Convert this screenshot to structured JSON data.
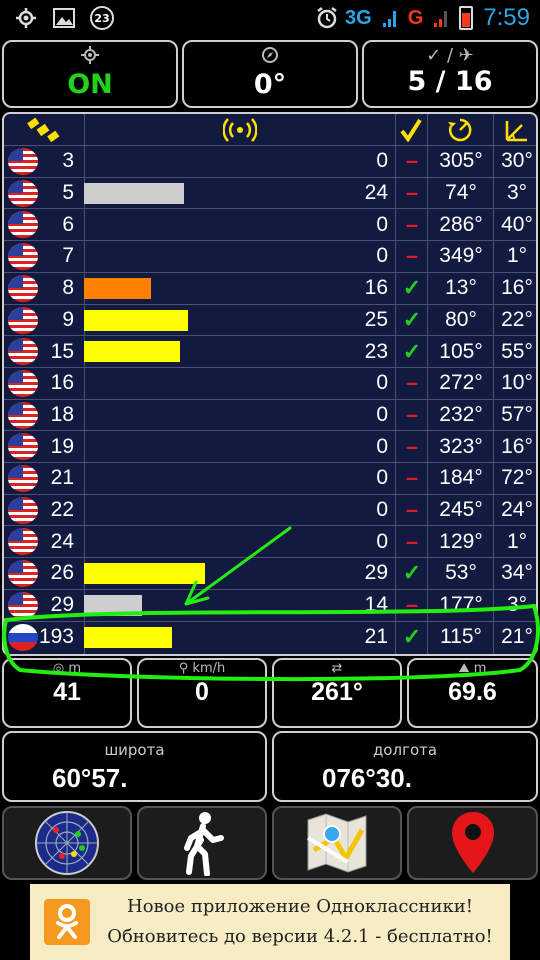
{
  "status_bar": {
    "notification_count": "23",
    "network_3g": "3G",
    "network_g": "G",
    "time": "7:59"
  },
  "top_panels": {
    "gps_state": "ON",
    "bearing": "0°",
    "satellites": "5 / 16",
    "satellites_icon_label": "✓ / ✈"
  },
  "satellites": [
    {
      "id": "3",
      "flag": "us",
      "snr": "0",
      "snr_level": 0,
      "snr_color": "",
      "used": false,
      "azimuth": "305°",
      "elevation": "30°"
    },
    {
      "id": "5",
      "flag": "us",
      "snr": "24",
      "snr_level": 24,
      "snr_color": "#cfcfcf",
      "used": false,
      "azimuth": "74°",
      "elevation": "3°"
    },
    {
      "id": "6",
      "flag": "us",
      "snr": "0",
      "snr_level": 0,
      "snr_color": "",
      "used": false,
      "azimuth": "286°",
      "elevation": "40°"
    },
    {
      "id": "7",
      "flag": "us",
      "snr": "0",
      "snr_level": 0,
      "snr_color": "",
      "used": false,
      "azimuth": "349°",
      "elevation": "1°"
    },
    {
      "id": "8",
      "flag": "us",
      "snr": "16",
      "snr_level": 16,
      "snr_color": "#ff8000",
      "used": true,
      "azimuth": "13°",
      "elevation": "16°"
    },
    {
      "id": "9",
      "flag": "us",
      "snr": "25",
      "snr_level": 25,
      "snr_color": "#ffff00",
      "used": true,
      "azimuth": "80°",
      "elevation": "22°"
    },
    {
      "id": "15",
      "flag": "us",
      "snr": "23",
      "snr_level": 23,
      "snr_color": "#ffff00",
      "used": true,
      "azimuth": "105°",
      "elevation": "55°"
    },
    {
      "id": "16",
      "flag": "us",
      "snr": "0",
      "snr_level": 0,
      "snr_color": "",
      "used": false,
      "azimuth": "272°",
      "elevation": "10°"
    },
    {
      "id": "18",
      "flag": "us",
      "snr": "0",
      "snr_level": 0,
      "snr_color": "",
      "used": false,
      "azimuth": "232°",
      "elevation": "57°"
    },
    {
      "id": "19",
      "flag": "us",
      "snr": "0",
      "snr_level": 0,
      "snr_color": "",
      "used": false,
      "azimuth": "323°",
      "elevation": "16°"
    },
    {
      "id": "21",
      "flag": "us",
      "snr": "0",
      "snr_level": 0,
      "snr_color": "",
      "used": false,
      "azimuth": "184°",
      "elevation": "72°"
    },
    {
      "id": "22",
      "flag": "us",
      "snr": "0",
      "snr_level": 0,
      "snr_color": "",
      "used": false,
      "azimuth": "245°",
      "elevation": "24°"
    },
    {
      "id": "24",
      "flag": "us",
      "snr": "0",
      "snr_level": 0,
      "snr_color": "",
      "used": false,
      "azimuth": "129°",
      "elevation": "1°"
    },
    {
      "id": "26",
      "flag": "us",
      "snr": "29",
      "snr_level": 29,
      "snr_color": "#ffff00",
      "used": true,
      "azimuth": "53°",
      "elevation": "34°"
    },
    {
      "id": "29",
      "flag": "us",
      "snr": "14",
      "snr_level": 14,
      "snr_color": "#cfcfcf",
      "used": false,
      "azimuth": "177°",
      "elevation": "3°"
    },
    {
      "id": "193",
      "flag": "ru",
      "snr": "21",
      "snr_level": 21,
      "snr_color": "#ffff00",
      "used": true,
      "azimuth": "115°",
      "elevation": "21°"
    }
  ],
  "marks": {
    "used": "✓",
    "not_used": "–"
  },
  "info_panels": {
    "altitude_unit": "m",
    "altitude": "41",
    "speed_unit": "km/h",
    "speed": "0",
    "course": "261°",
    "accuracy_unit": "m",
    "accuracy": "69.6"
  },
  "coords": {
    "lat_label": "широта",
    "lat_value": "60°57.",
    "lon_label": "долгота",
    "lon_value": "076°30."
  },
  "ad": {
    "line1": "Новое приложение Одноклассники!",
    "line2": "Обновитесь до версии 4.2.1 - бесплатно!"
  },
  "colors": {
    "table_bg": "#121a40",
    "used_mark": "#22d11a",
    "unused_mark": "#e21c1c",
    "annotation": "#22ee11"
  }
}
